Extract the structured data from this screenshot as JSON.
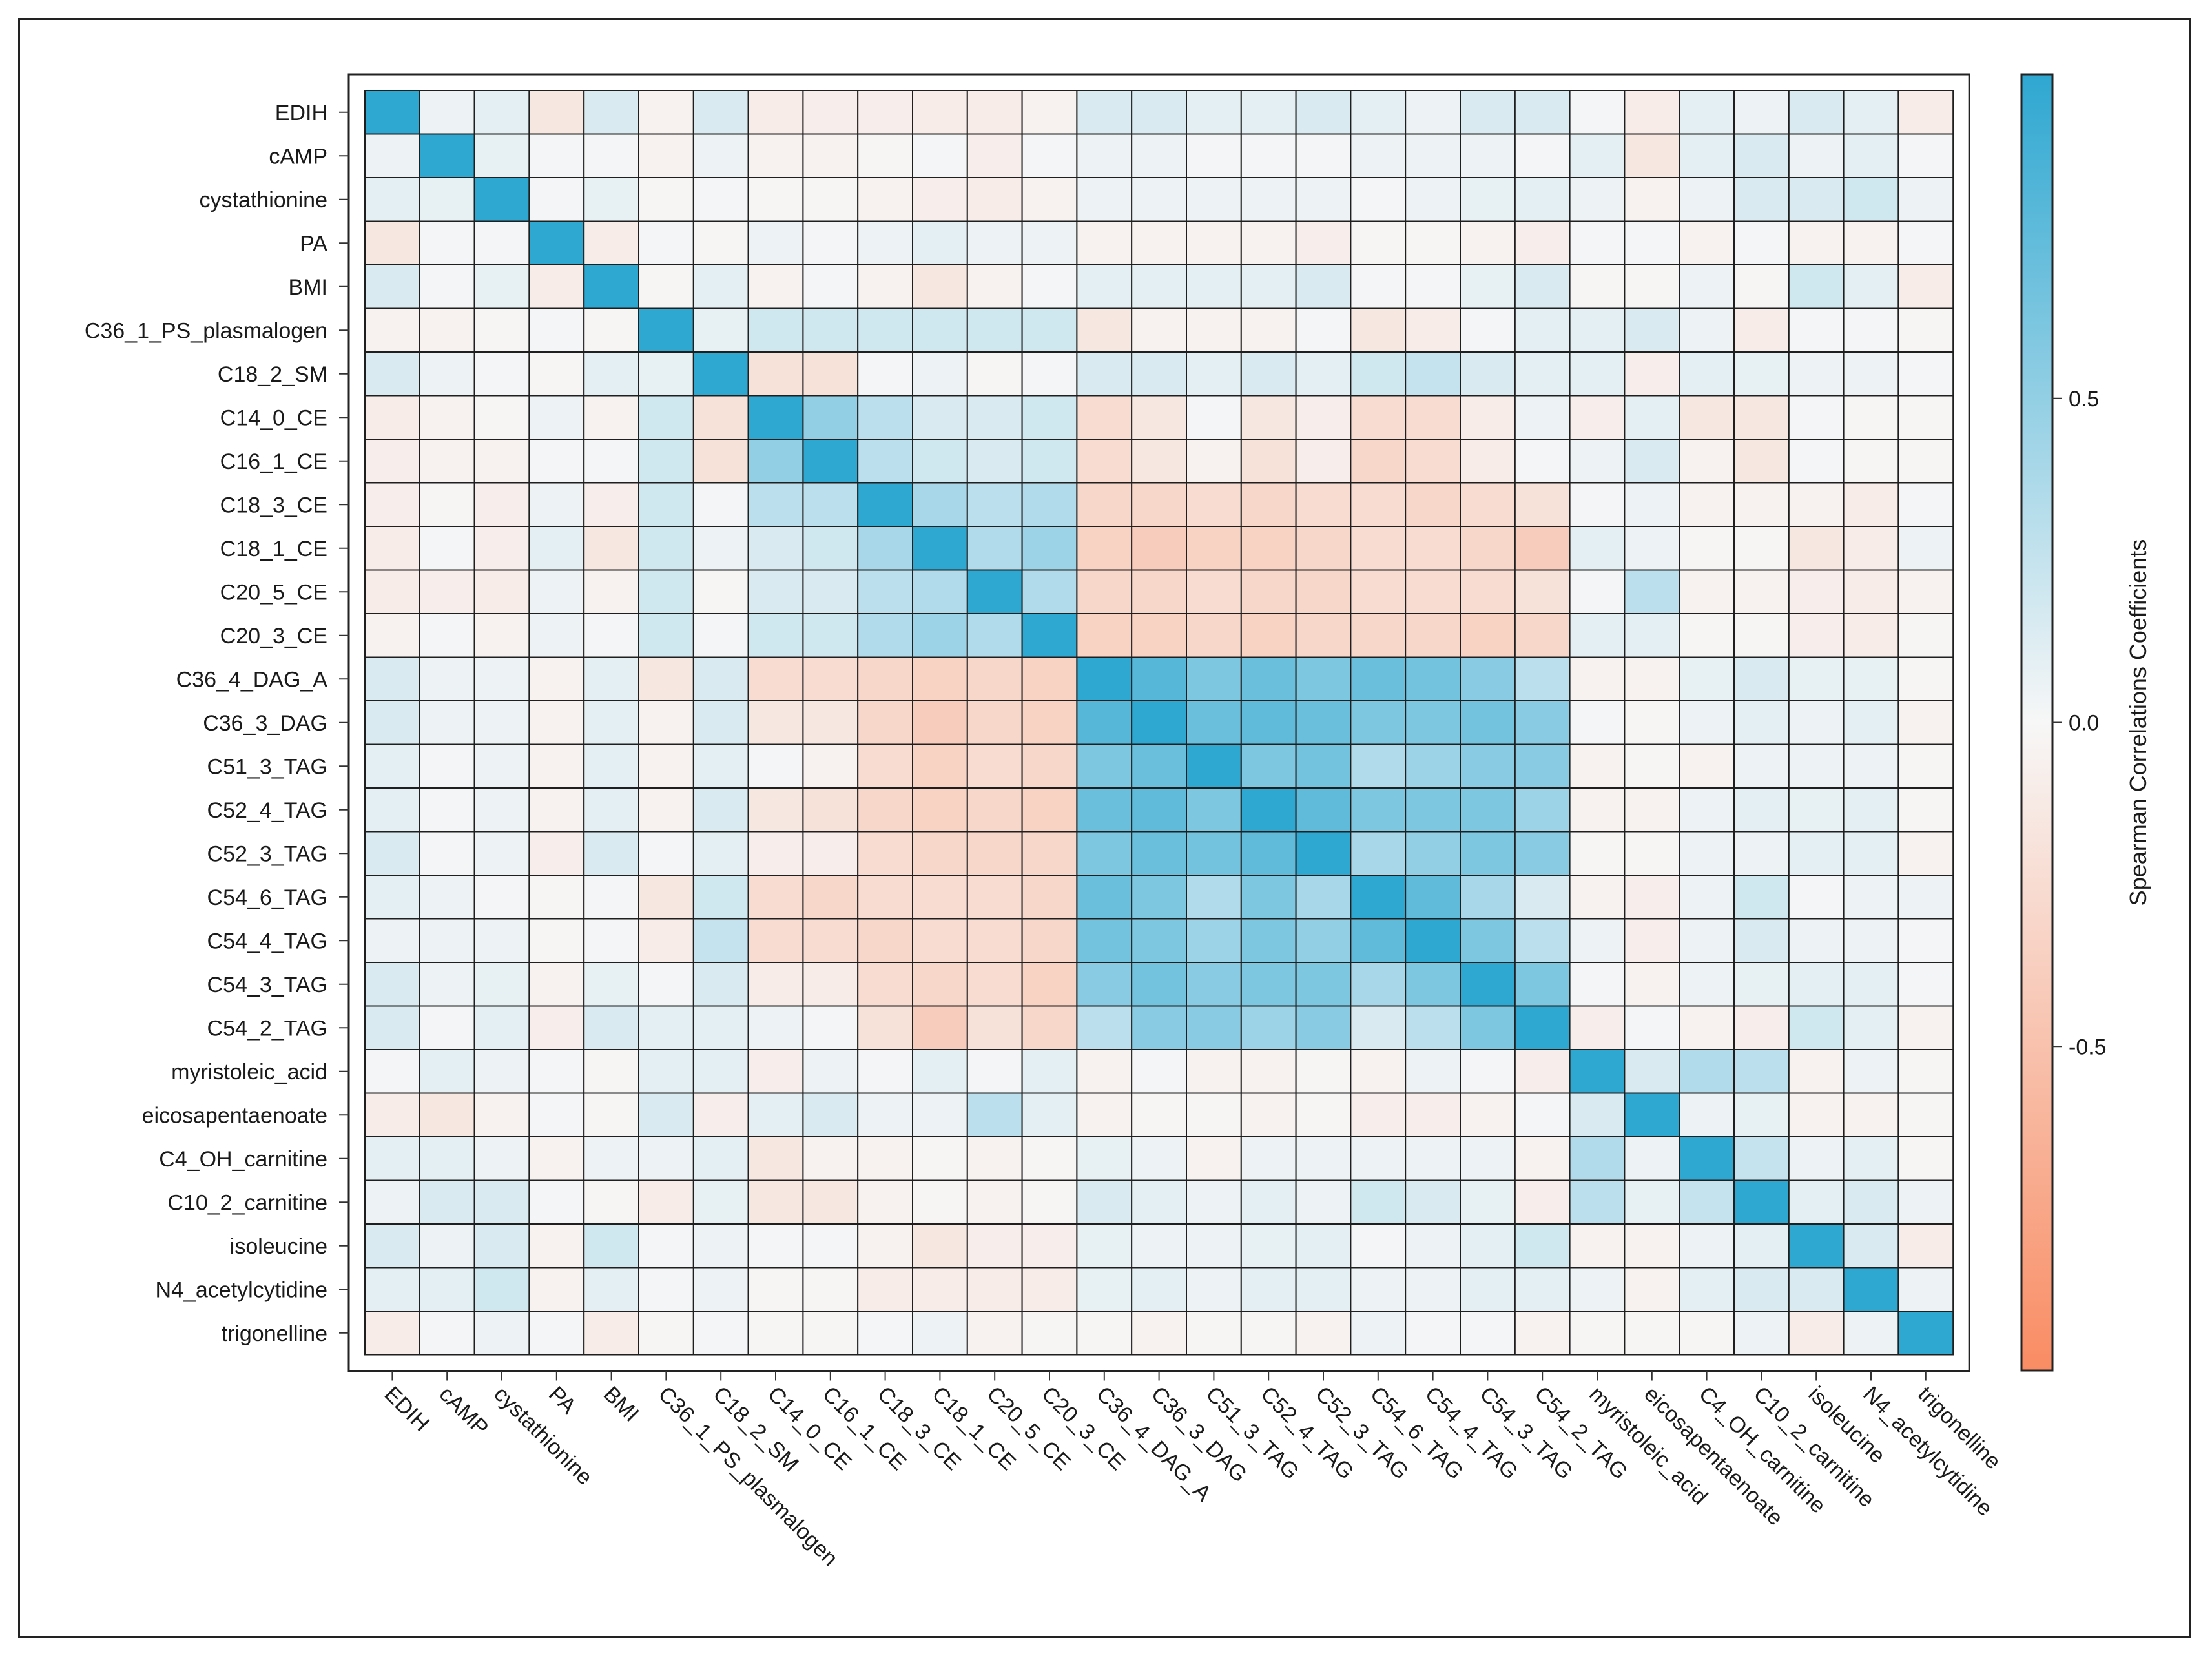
{
  "chart_data": {
    "type": "heatmap",
    "title": "",
    "xlabel": "",
    "ylabel": "",
    "variables": [
      "EDIH",
      "cAMP",
      "cystathionine",
      "PA",
      "BMI",
      "C36_1_PS_plasmalogen",
      "C18_2_SM",
      "C14_0_CE",
      "C16_1_CE",
      "C18_3_CE",
      "C18_1_CE",
      "C20_5_CE",
      "C20_3_CE",
      "C36_4_DAG_A",
      "C36_3_DAG",
      "C51_3_TAG",
      "C52_4_TAG",
      "C52_3_TAG",
      "C54_6_TAG",
      "C54_4_TAG",
      "C54_3_TAG",
      "C54_2_TAG",
      "myristoleic_acid",
      "eicosapentaenoate",
      "C4_OH_carnitine",
      "C10_2_carnitine",
      "isoleucine",
      "N4_acetylcytidine",
      "trigonelline"
    ],
    "values": [
      [
        1.0,
        0.05,
        0.1,
        -0.15,
        0.15,
        -0.05,
        0.15,
        -0.1,
        -0.08,
        -0.08,
        -0.1,
        -0.1,
        -0.05,
        0.15,
        0.15,
        0.1,
        0.1,
        0.15,
        0.1,
        0.05,
        0.15,
        0.15,
        0.02,
        -0.1,
        0.1,
        0.05,
        0.15,
        0.1,
        -0.1
      ],
      [
        0.05,
        1.0,
        0.08,
        0.02,
        0.02,
        -0.05,
        0.05,
        -0.05,
        -0.05,
        -0.02,
        0.02,
        -0.08,
        0.02,
        0.05,
        0.05,
        0.02,
        0.02,
        0.02,
        0.05,
        0.05,
        0.05,
        0.02,
        0.1,
        -0.15,
        0.1,
        0.15,
        0.05,
        0.1,
        0.02
      ],
      [
        0.1,
        0.08,
        1.0,
        0.02,
        0.08,
        -0.02,
        0.02,
        -0.02,
        -0.02,
        -0.05,
        -0.08,
        -0.1,
        -0.05,
        0.05,
        0.05,
        0.05,
        0.05,
        0.05,
        0.02,
        0.05,
        0.08,
        0.1,
        0.05,
        -0.05,
        0.05,
        0.15,
        0.15,
        0.2,
        0.05
      ],
      [
        -0.15,
        0.02,
        0.02,
        1.0,
        -0.1,
        0.02,
        -0.02,
        0.05,
        0.02,
        0.05,
        0.1,
        0.05,
        0.05,
        -0.05,
        -0.05,
        -0.05,
        -0.05,
        -0.08,
        -0.02,
        -0.02,
        -0.05,
        -0.08,
        0.02,
        0.02,
        -0.05,
        0.02,
        -0.05,
        -0.05,
        0.02
      ],
      [
        0.15,
        0.02,
        0.08,
        -0.1,
        1.0,
        -0.02,
        0.1,
        -0.05,
        0.02,
        -0.05,
        -0.15,
        -0.05,
        0.02,
        0.1,
        0.1,
        0.1,
        0.1,
        0.15,
        0.02,
        0.02,
        0.08,
        0.15,
        -0.02,
        -0.02,
        0.05,
        -0.02,
        0.2,
        0.1,
        -0.1
      ],
      [
        -0.05,
        -0.05,
        -0.02,
        0.02,
        -0.02,
        1.0,
        0.08,
        0.2,
        0.2,
        0.2,
        0.2,
        0.2,
        0.2,
        -0.15,
        -0.05,
        -0.05,
        -0.05,
        0.02,
        -0.15,
        -0.1,
        0.02,
        0.1,
        0.1,
        0.15,
        0.05,
        -0.1,
        0.02,
        0.02,
        -0.02
      ],
      [
        0.15,
        0.05,
        0.02,
        -0.02,
        0.1,
        0.08,
        1.0,
        -0.2,
        -0.2,
        0.02,
        0.05,
        -0.02,
        0.02,
        0.15,
        0.15,
        0.1,
        0.15,
        0.1,
        0.2,
        0.25,
        0.15,
        0.1,
        0.1,
        -0.08,
        0.1,
        0.08,
        0.05,
        0.05,
        0.02
      ],
      [
        -0.1,
        -0.05,
        -0.02,
        0.05,
        -0.05,
        0.2,
        -0.2,
        1.0,
        0.5,
        0.3,
        0.15,
        0.15,
        0.2,
        -0.25,
        -0.15,
        0.02,
        -0.15,
        -0.08,
        -0.25,
        -0.25,
        -0.1,
        0.05,
        -0.08,
        0.1,
        -0.15,
        -0.15,
        0.02,
        -0.02,
        -0.02
      ],
      [
        -0.08,
        -0.05,
        -0.05,
        0.02,
        0.02,
        0.2,
        -0.2,
        0.5,
        1.0,
        0.3,
        0.2,
        0.15,
        0.2,
        -0.25,
        -0.15,
        -0.05,
        -0.2,
        -0.08,
        -0.3,
        -0.25,
        -0.1,
        0.02,
        0.05,
        0.15,
        -0.05,
        -0.15,
        0.02,
        -0.02,
        -0.02
      ],
      [
        -0.08,
        -0.02,
        -0.08,
        0.05,
        -0.08,
        0.2,
        0.02,
        0.3,
        0.3,
        1.0,
        0.4,
        0.3,
        0.35,
        -0.3,
        -0.3,
        -0.25,
        -0.3,
        -0.25,
        -0.25,
        -0.3,
        -0.25,
        -0.2,
        0.02,
        0.05,
        -0.05,
        -0.05,
        -0.05,
        -0.1,
        0.02
      ],
      [
        -0.1,
        0.02,
        -0.08,
        0.1,
        -0.15,
        0.2,
        0.05,
        0.15,
        0.2,
        0.4,
        1.0,
        0.35,
        0.45,
        -0.35,
        -0.4,
        -0.35,
        -0.35,
        -0.3,
        -0.25,
        -0.25,
        -0.3,
        -0.4,
        0.1,
        0.05,
        -0.02,
        -0.02,
        -0.15,
        -0.1,
        0.05
      ],
      [
        -0.1,
        -0.08,
        -0.1,
        0.05,
        -0.05,
        0.2,
        -0.02,
        0.15,
        0.15,
        0.3,
        0.35,
        1.0,
        0.35,
        -0.3,
        -0.3,
        -0.25,
        -0.3,
        -0.3,
        -0.25,
        -0.25,
        -0.25,
        -0.2,
        0.02,
        0.3,
        -0.05,
        -0.05,
        -0.08,
        -0.1,
        -0.05
      ],
      [
        -0.05,
        0.02,
        -0.05,
        0.05,
        0.02,
        0.2,
        0.02,
        0.2,
        0.2,
        0.35,
        0.45,
        0.35,
        1.0,
        -0.35,
        -0.35,
        -0.3,
        -0.35,
        -0.3,
        -0.3,
        -0.3,
        -0.35,
        -0.3,
        0.1,
        0.1,
        -0.02,
        -0.02,
        -0.08,
        -0.1,
        -0.02
      ],
      [
        0.15,
        0.05,
        0.05,
        -0.05,
        0.1,
        -0.15,
        0.15,
        -0.25,
        -0.25,
        -0.3,
        -0.35,
        -0.3,
        -0.35,
        1.0,
        0.8,
        0.6,
        0.7,
        0.6,
        0.7,
        0.65,
        0.55,
        0.3,
        -0.05,
        -0.05,
        0.08,
        0.15,
        0.08,
        0.08,
        -0.02
      ],
      [
        0.15,
        0.05,
        0.05,
        -0.05,
        0.1,
        -0.05,
        0.15,
        -0.15,
        -0.15,
        -0.3,
        -0.4,
        -0.3,
        -0.35,
        0.8,
        1.0,
        0.7,
        0.75,
        0.7,
        0.6,
        0.6,
        0.65,
        0.55,
        0.02,
        -0.02,
        0.05,
        0.1,
        0.05,
        0.1,
        -0.05
      ],
      [
        0.1,
        0.02,
        0.05,
        -0.05,
        0.1,
        -0.05,
        0.1,
        0.02,
        -0.05,
        -0.25,
        -0.35,
        -0.25,
        -0.3,
        0.6,
        0.7,
        1.0,
        0.6,
        0.65,
        0.35,
        0.45,
        0.55,
        0.55,
        -0.05,
        -0.02,
        -0.05,
        0.05,
        0.05,
        0.05,
        -0.02
      ],
      [
        0.1,
        0.02,
        0.05,
        -0.05,
        0.1,
        -0.05,
        0.15,
        -0.15,
        -0.2,
        -0.3,
        -0.35,
        -0.3,
        -0.35,
        0.7,
        0.75,
        0.6,
        1.0,
        0.75,
        0.6,
        0.6,
        0.6,
        0.45,
        -0.05,
        -0.05,
        0.05,
        0.1,
        0.08,
        0.1,
        -0.02
      ],
      [
        0.15,
        0.02,
        0.05,
        -0.08,
        0.15,
        0.02,
        0.1,
        -0.08,
        -0.08,
        -0.25,
        -0.3,
        -0.3,
        -0.3,
        0.6,
        0.7,
        0.65,
        0.75,
        1.0,
        0.4,
        0.5,
        0.6,
        0.55,
        -0.02,
        -0.02,
        0.05,
        0.05,
        0.1,
        0.1,
        -0.05
      ],
      [
        0.1,
        0.05,
        0.02,
        -0.02,
        0.02,
        -0.15,
        0.2,
        -0.25,
        -0.3,
        -0.25,
        -0.25,
        -0.25,
        -0.3,
        0.7,
        0.6,
        0.35,
        0.6,
        0.4,
        1.0,
        0.75,
        0.4,
        0.15,
        -0.05,
        -0.08,
        0.05,
        0.2,
        0.02,
        0.05,
        0.05
      ],
      [
        0.05,
        0.05,
        0.05,
        -0.02,
        0.02,
        -0.1,
        0.25,
        -0.25,
        -0.25,
        -0.3,
        -0.25,
        -0.25,
        -0.3,
        0.65,
        0.6,
        0.45,
        0.6,
        0.5,
        0.75,
        1.0,
        0.6,
        0.3,
        0.05,
        -0.08,
        0.05,
        0.15,
        0.05,
        0.05,
        0.02
      ],
      [
        0.15,
        0.05,
        0.08,
        -0.05,
        0.08,
        0.02,
        0.15,
        -0.1,
        -0.1,
        -0.25,
        -0.3,
        -0.25,
        -0.35,
        0.55,
        0.65,
        0.55,
        0.6,
        0.6,
        0.4,
        0.6,
        1.0,
        0.6,
        0.02,
        -0.05,
        0.05,
        0.08,
        0.1,
        0.1,
        0.02
      ],
      [
        0.15,
        0.02,
        0.1,
        -0.08,
        0.15,
        0.1,
        0.1,
        0.05,
        0.02,
        -0.2,
        -0.4,
        -0.2,
        -0.3,
        0.3,
        0.55,
        0.55,
        0.45,
        0.55,
        0.15,
        0.3,
        0.6,
        1.0,
        -0.08,
        0.02,
        -0.05,
        -0.08,
        0.2,
        0.1,
        -0.05
      ],
      [
        0.02,
        0.1,
        0.05,
        0.02,
        -0.02,
        0.1,
        0.1,
        -0.08,
        0.05,
        0.02,
        0.1,
        0.02,
        0.1,
        -0.05,
        0.02,
        -0.05,
        -0.05,
        -0.02,
        -0.05,
        0.05,
        0.02,
        -0.08,
        1.0,
        0.15,
        0.35,
        0.3,
        -0.05,
        0.05,
        -0.02
      ],
      [
        -0.1,
        -0.15,
        -0.05,
        0.02,
        -0.02,
        0.15,
        -0.08,
        0.1,
        0.15,
        0.05,
        0.05,
        0.3,
        0.1,
        -0.05,
        -0.02,
        -0.02,
        -0.05,
        -0.02,
        -0.08,
        -0.08,
        -0.05,
        0.02,
        0.15,
        1.0,
        0.05,
        0.08,
        -0.05,
        -0.05,
        -0.02
      ],
      [
        0.1,
        0.1,
        0.05,
        -0.05,
        0.05,
        0.05,
        0.1,
        -0.15,
        -0.05,
        -0.05,
        -0.02,
        -0.05,
        -0.02,
        0.08,
        0.05,
        -0.05,
        0.05,
        0.05,
        0.05,
        0.05,
        0.05,
        -0.05,
        0.35,
        0.05,
        1.0,
        0.25,
        0.05,
        0.1,
        -0.02
      ],
      [
        0.05,
        0.15,
        0.15,
        0.02,
        -0.02,
        -0.1,
        0.08,
        -0.15,
        -0.15,
        -0.05,
        -0.02,
        -0.05,
        -0.02,
        0.15,
        0.1,
        0.05,
        0.1,
        0.05,
        0.2,
        0.15,
        0.08,
        -0.08,
        0.3,
        0.08,
        0.25,
        1.0,
        0.1,
        0.15,
        0.05
      ],
      [
        0.15,
        0.05,
        0.15,
        -0.05,
        0.2,
        0.02,
        0.05,
        0.02,
        0.02,
        -0.05,
        -0.15,
        -0.08,
        -0.08,
        0.08,
        0.05,
        0.05,
        0.08,
        0.1,
        0.02,
        0.05,
        0.1,
        0.2,
        -0.05,
        -0.05,
        0.05,
        0.1,
        1.0,
        0.15,
        -0.1
      ],
      [
        0.1,
        0.1,
        0.2,
        -0.05,
        0.1,
        0.02,
        0.05,
        -0.02,
        -0.02,
        -0.1,
        -0.1,
        -0.1,
        -0.1,
        0.08,
        0.1,
        0.05,
        0.1,
        0.1,
        0.05,
        0.05,
        0.1,
        0.1,
        0.05,
        -0.05,
        0.1,
        0.15,
        0.15,
        1.0,
        0.05
      ],
      [
        -0.1,
        0.02,
        0.05,
        0.02,
        -0.1,
        -0.02,
        0.02,
        -0.02,
        -0.02,
        0.02,
        0.05,
        -0.05,
        -0.02,
        -0.02,
        -0.05,
        -0.02,
        -0.02,
        -0.05,
        0.05,
        0.02,
        0.02,
        -0.05,
        -0.02,
        -0.02,
        -0.02,
        0.05,
        -0.1,
        0.05,
        1.0
      ]
    ],
    "colorbar": {
      "label": "Spearman Correlations Coefficients",
      "range": [
        -1,
        1
      ],
      "ticks": [
        0.5,
        0.0,
        -0.5
      ],
      "tick_labels": [
        "0.5",
        "0.0",
        "-0.5"
      ]
    },
    "colors": {
      "positive": "#2ea7d1",
      "neutral": "#f7f7f7",
      "negative": "#f98c63",
      "grid": "#1f1f1f"
    }
  }
}
